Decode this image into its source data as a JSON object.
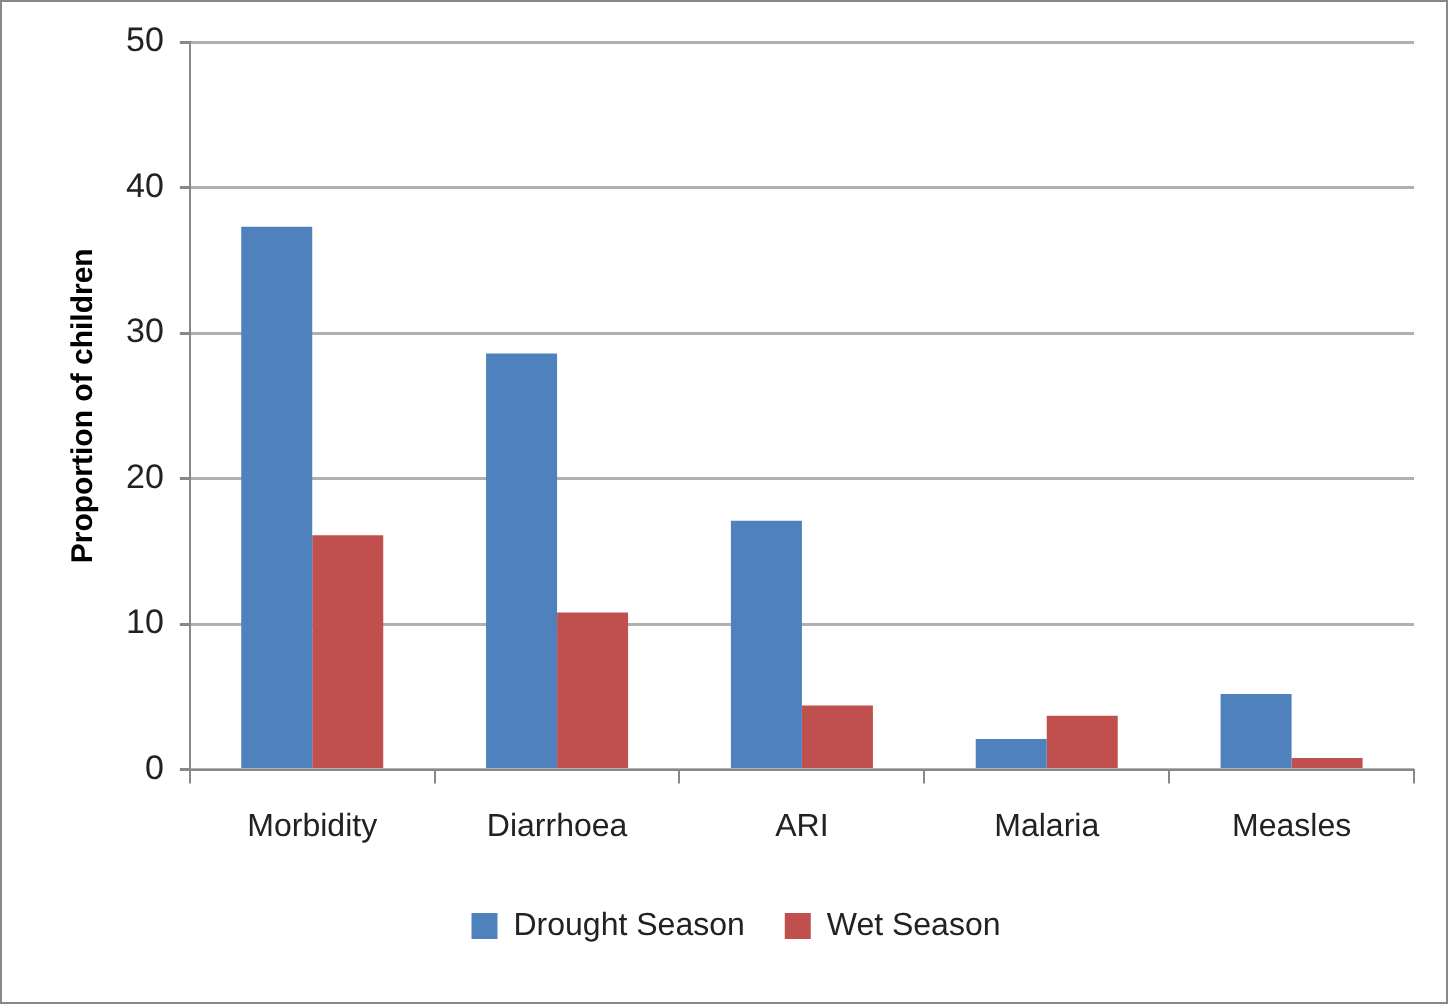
{
  "chart_data": {
    "type": "bar",
    "ylabel": "Proportion of children",
    "categories": [
      "Morbidity",
      "Diarrhoea",
      "ARI",
      "Malaria",
      "Measles"
    ],
    "series": [
      {
        "name": "Drought Season",
        "color": "#4f81bd",
        "values": [
          37.3,
          28.6,
          17.1,
          2.1,
          5.2
        ]
      },
      {
        "name": "Wet Season",
        "color": "#c0504d",
        "values": [
          16.1,
          10.8,
          4.4,
          3.7,
          0.8
        ]
      }
    ],
    "ylim": [
      0,
      50
    ],
    "yticks": [
      0,
      10,
      20,
      30,
      40,
      50
    ],
    "grid": "y",
    "legend": "bottom"
  }
}
